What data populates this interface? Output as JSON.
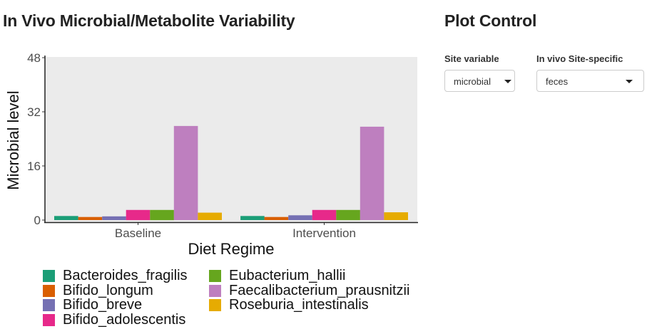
{
  "left_panel": {
    "title": "In Vivo Microbial/Metabolite Variability"
  },
  "right_panel": {
    "title": "Plot Control",
    "site_variable": {
      "label": "Site variable",
      "value": "microbial"
    },
    "site_specific": {
      "label": "In vivo Site-specific",
      "value": "feces"
    }
  },
  "icons": {
    "dropdown": "caret-down-icon"
  },
  "chart_data": {
    "type": "bar",
    "xlabel": "Diet Regime",
    "ylabel": "Microbial level",
    "categories": [
      "Baseline",
      "Intervention"
    ],
    "ylim": [
      0,
      48
    ],
    "yticks": [
      0,
      16,
      32,
      48
    ],
    "grid": false,
    "panel_background": "#ebebeb",
    "legend_position": "bottom",
    "series": [
      {
        "name": "Bacteroides_fragilis",
        "color": "#1b9e77",
        "values": [
          1.2,
          1.2
        ]
      },
      {
        "name": "Bifido_longum",
        "color": "#d95f02",
        "values": [
          0.9,
          0.9
        ]
      },
      {
        "name": "Bifido_breve",
        "color": "#7570b3",
        "values": [
          1.1,
          1.4
        ]
      },
      {
        "name": "Bifido_adolescentis",
        "color": "#e7298a",
        "values": [
          3.0,
          3.0
        ]
      },
      {
        "name": "Eubacterium_hallii",
        "color": "#66a61e",
        "values": [
          3.0,
          3.0
        ]
      },
      {
        "name": "Faecalibacterium_prausnitzii",
        "color": "#be7fbf",
        "values": [
          27.8,
          27.6
        ]
      },
      {
        "name": "Roseburia_intestinalis",
        "color": "#e6ab02",
        "values": [
          2.2,
          2.3
        ]
      }
    ]
  }
}
